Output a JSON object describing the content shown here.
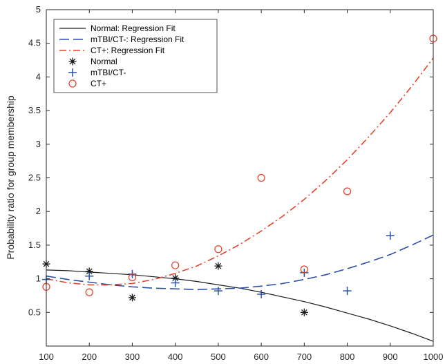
{
  "chart_data": {
    "type": "scatter",
    "title": "",
    "xlabel": "",
    "ylabel": "Probability ratio for group membership",
    "xlim": [
      100,
      1000
    ],
    "ylim": [
      0,
      5
    ],
    "xticks": [
      "100",
      "200",
      "300",
      "400",
      "500",
      "600",
      "700",
      "800",
      "900",
      "1000"
    ],
    "yticks": [
      "0.5",
      "1",
      "1.5",
      "2",
      "2.5",
      "3",
      "3.5",
      "4",
      "4.5",
      "5"
    ],
    "grid": false,
    "legend_position": "top-left",
    "series": [
      {
        "name": "Normal: Regression Fit",
        "kind": "line",
        "style": "solid",
        "color": "#1a1a1a",
        "x": [
          100,
          150,
          200,
          250,
          300,
          350,
          400,
          450,
          500,
          550,
          600,
          650,
          700,
          750,
          800,
          850,
          900,
          950,
          1000
        ],
        "y": [
          1.13,
          1.12,
          1.1,
          1.08,
          1.06,
          1.03,
          1.0,
          0.96,
          0.91,
          0.86,
          0.8,
          0.73,
          0.66,
          0.58,
          0.49,
          0.4,
          0.3,
          0.19,
          0.07
        ]
      },
      {
        "name": "mTBI/CT-: Regression Fit",
        "kind": "line",
        "style": "dashed",
        "color": "#2a4fa8",
        "x": [
          100,
          150,
          200,
          250,
          300,
          350,
          400,
          450,
          500,
          550,
          600,
          650,
          700,
          750,
          800,
          850,
          900,
          950,
          1000
        ],
        "y": [
          1.04,
          0.99,
          0.95,
          0.91,
          0.88,
          0.86,
          0.85,
          0.84,
          0.85,
          0.86,
          0.89,
          0.93,
          0.99,
          1.06,
          1.15,
          1.25,
          1.36,
          1.5,
          1.65
        ]
      },
      {
        "name": "CT+: Regression Fit",
        "kind": "line",
        "style": "dashdot",
        "color": "#e8432c",
        "x": [
          100,
          150,
          200,
          250,
          300,
          350,
          400,
          450,
          500,
          550,
          600,
          650,
          700,
          750,
          800,
          850,
          900,
          950,
          1000
        ],
        "y": [
          1.0,
          0.94,
          0.91,
          0.91,
          0.93,
          0.99,
          1.08,
          1.19,
          1.34,
          1.51,
          1.71,
          1.93,
          2.18,
          2.46,
          2.77,
          3.11,
          3.47,
          3.86,
          4.28
        ]
      },
      {
        "name": "Normal",
        "kind": "points",
        "marker": "asterisk",
        "color": "#1a1a1a",
        "x": [
          100,
          200,
          300,
          400,
          500,
          700
        ],
        "y": [
          1.22,
          1.11,
          0.72,
          1.01,
          1.19,
          0.5
        ]
      },
      {
        "name": "mTBI/CT-",
        "kind": "points",
        "marker": "plus",
        "color": "#2a4fa8",
        "x": [
          100,
          200,
          300,
          400,
          500,
          600,
          700,
          800,
          900
        ],
        "y": [
          0.99,
          1.04,
          1.07,
          0.94,
          0.82,
          0.77,
          1.09,
          0.82,
          1.64
        ]
      },
      {
        "name": "CT+",
        "kind": "points",
        "marker": "circle",
        "color": "#e8432c",
        "x": [
          100,
          200,
          300,
          400,
          500,
          600,
          700,
          800,
          1000
        ],
        "y": [
          0.88,
          0.8,
          1.02,
          1.2,
          1.44,
          2.5,
          1.14,
          2.3,
          4.57
        ]
      }
    ]
  }
}
